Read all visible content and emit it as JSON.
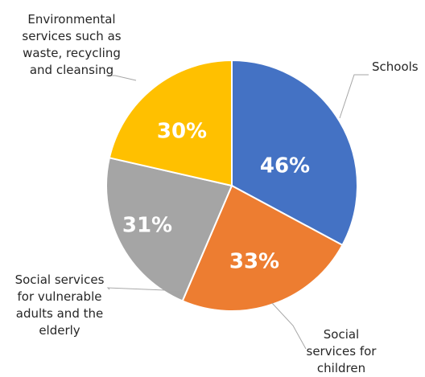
{
  "chart_data": {
    "type": "pie",
    "title": "",
    "slices": [
      {
        "label": [
          "Schools"
        ],
        "value": 46,
        "value_label": "46%",
        "color": "#4472C4"
      },
      {
        "label": [
          "Social",
          "services for",
          "children"
        ],
        "value": 33,
        "value_label": "33%",
        "color": "#ED7D31"
      },
      {
        "label": [
          "Social services",
          "for vulnerable",
          "adults and the",
          "elderly"
        ],
        "value": 31,
        "value_label": "31%",
        "color": "#A5A5A5"
      },
      {
        "label": [
          "Environmental",
          "services such as",
          "waste, recycling",
          "and cleansing"
        ],
        "value": 30,
        "value_label": "30%",
        "color": "#FFC000"
      }
    ]
  }
}
